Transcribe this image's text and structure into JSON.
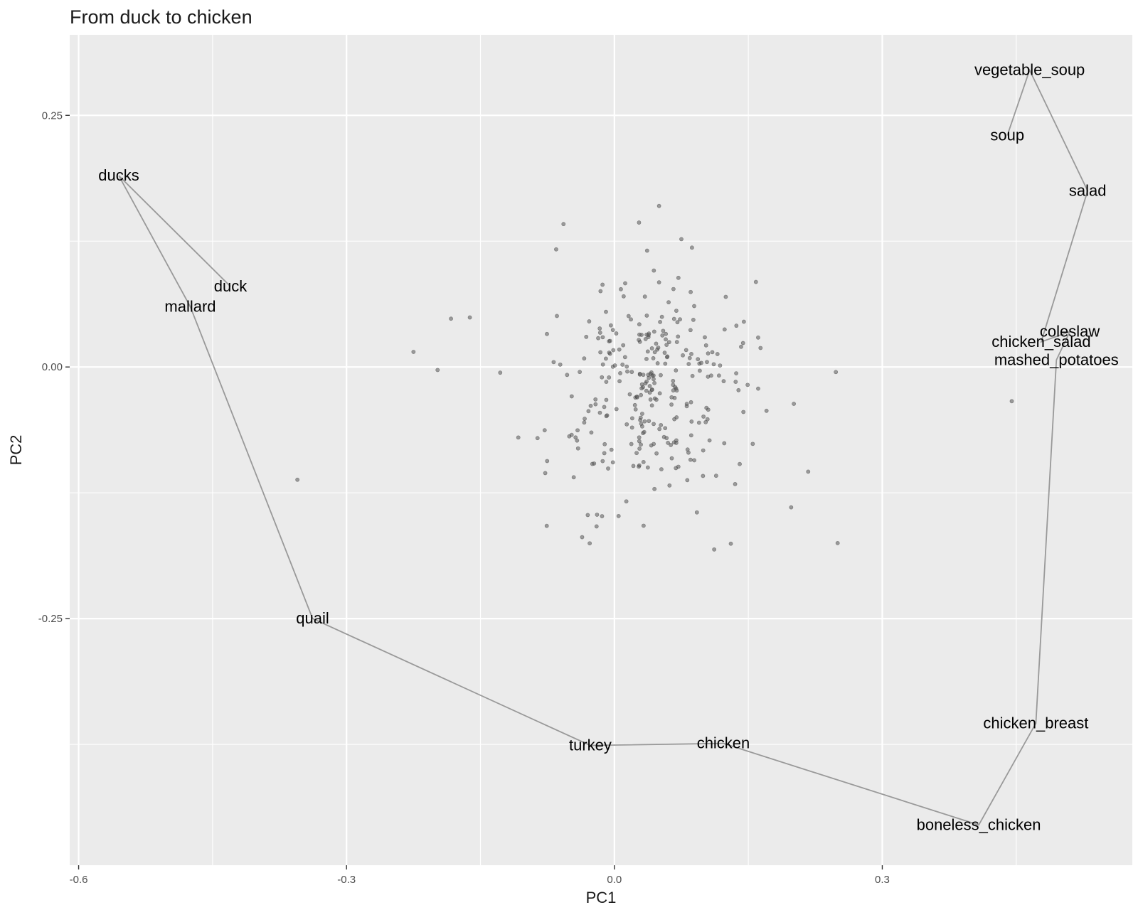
{
  "chart_data": {
    "type": "scatter",
    "title": "From duck to chicken",
    "xlabel": "PC1",
    "ylabel": "PC2",
    "xlim": [
      -0.61,
      0.58
    ],
    "ylim": [
      -0.495,
      0.33
    ],
    "xticks": [
      -0.6,
      -0.3,
      0.0,
      0.3
    ],
    "xtick_labels": [
      "-0.6",
      "-0.3",
      "0.0",
      "0.3"
    ],
    "yticks": [
      -0.25,
      0.0,
      0.25
    ],
    "ytick_labels": [
      "-0.25",
      "0.00",
      "0.25"
    ],
    "grid": true,
    "background": "#ebebeb",
    "path_color": "#999999",
    "point_color": "#555555",
    "labeled_path": [
      {
        "label": "duck",
        "x": -0.43,
        "y": 0.08
      },
      {
        "label": "ducks",
        "x": -0.555,
        "y": 0.19
      },
      {
        "label": "mallard",
        "x": -0.475,
        "y": 0.06
      },
      {
        "label": "quail",
        "x": -0.338,
        "y": -0.25
      },
      {
        "label": "turkey",
        "x": -0.027,
        "y": -0.376
      },
      {
        "label": "chicken",
        "x": 0.122,
        "y": -0.374
      },
      {
        "label": "boneless_chicken",
        "x": 0.408,
        "y": -0.455
      },
      {
        "label": "chicken_breast",
        "x": 0.472,
        "y": -0.354
      },
      {
        "label": "mashed_potatoes",
        "x": 0.495,
        "y": 0.007
      },
      {
        "label": "coleslaw",
        "x": 0.51,
        "y": 0.035
      },
      {
        "label": "chicken_salad",
        "x": 0.478,
        "y": 0.025
      },
      {
        "label": "salad",
        "x": 0.53,
        "y": 0.175
      },
      {
        "label": "vegetable_soup",
        "x": 0.465,
        "y": 0.295
      },
      {
        "label": "soup",
        "x": 0.44,
        "y": 0.23
      }
    ],
    "background_points": {
      "count": 300,
      "x_mean": 0.04,
      "x_sd": 0.058,
      "y_mean": -0.02,
      "y_sd": 0.06,
      "outliers": [
        [
          -0.355,
          -0.112
        ],
        [
          -0.225,
          0.015
        ],
        [
          -0.198,
          -0.003
        ],
        [
          -0.183,
          0.048
        ],
        [
          0.217,
          -0.104
        ],
        [
          0.248,
          -0.005
        ],
        [
          0.25,
          -0.175
        ],
        [
          0.445,
          -0.034
        ],
        [
          0.05,
          0.16
        ],
        [
          -0.057,
          0.142
        ],
        [
          0.075,
          0.127
        ],
        [
          0.145,
          0.045
        ]
      ]
    }
  }
}
